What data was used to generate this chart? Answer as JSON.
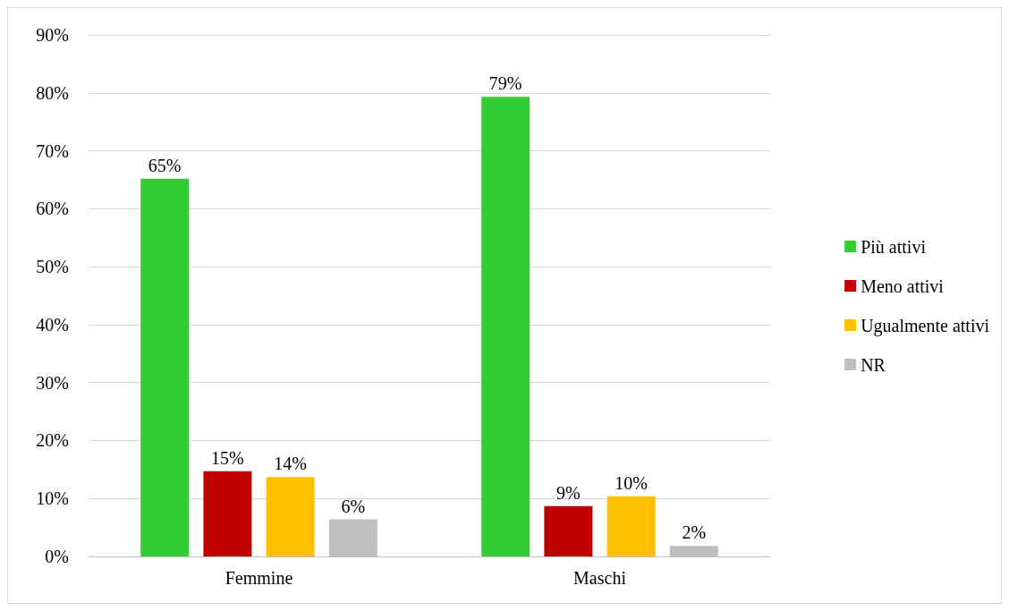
{
  "chart_data": {
    "type": "bar",
    "categories": [
      "Femmine",
      "Maschi"
    ],
    "series": [
      {
        "name": "Più attivi",
        "color": "#33cc33",
        "values": [
          65.2,
          79.3
        ],
        "value_labels": [
          "65%",
          "79%"
        ]
      },
      {
        "name": "Meno attivi",
        "color": "#c00000",
        "values": [
          14.7,
          8.7
        ],
        "value_labels": [
          "15%",
          "9%"
        ]
      },
      {
        "name": "Ugualmente attivi",
        "color": "#ffc000",
        "values": [
          13.7,
          10.4
        ],
        "value_labels": [
          "14%",
          "10%"
        ]
      },
      {
        "name": "NR",
        "color": "#bfbfbf",
        "values": [
          6.4,
          1.8
        ],
        "value_labels": [
          "6%",
          "2%"
        ]
      }
    ],
    "ylim": [
      0,
      90
    ],
    "yticks": [
      {
        "value": 0,
        "label": "0%"
      },
      {
        "value": 10,
        "label": "10%"
      },
      {
        "value": 20,
        "label": "20%"
      },
      {
        "value": 30,
        "label": "30%"
      },
      {
        "value": 40,
        "label": "40%"
      },
      {
        "value": 50,
        "label": "50%"
      },
      {
        "value": 60,
        "label": "60%"
      },
      {
        "value": 70,
        "label": "70%"
      },
      {
        "value": 80,
        "label": "80%"
      },
      {
        "value": 90,
        "label": "90%"
      }
    ],
    "grid": "y",
    "legend": "right"
  }
}
